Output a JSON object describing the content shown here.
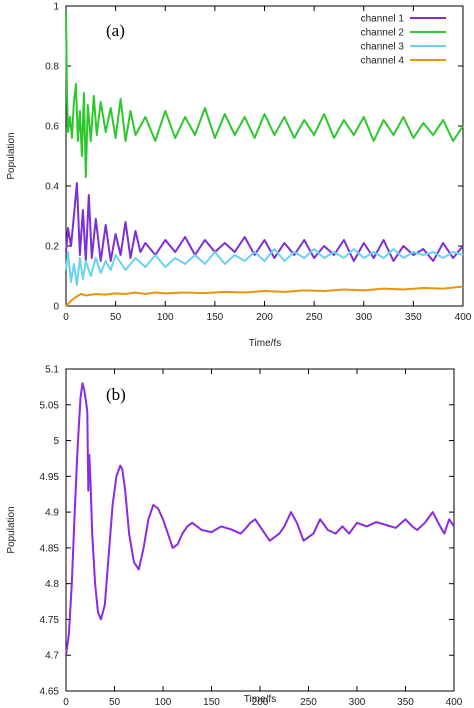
{
  "chart_data": [
    {
      "type": "line",
      "panel_label": "(a)",
      "xlabel": "Time/fs",
      "ylabel": "Population",
      "xlim": [
        0,
        400
      ],
      "ylim": [
        0,
        1
      ],
      "xticks": [
        "0",
        "50",
        "100",
        "150",
        "200",
        "250",
        "300",
        "350",
        "400"
      ],
      "yticks": [
        "0",
        "0.2",
        "0.4",
        "0.6",
        "0.8",
        "1"
      ],
      "legend_position": "top-right",
      "series": [
        {
          "name": "channel 1",
          "color": "#7b2fd4",
          "x": [
            0,
            2,
            5,
            8,
            11,
            14,
            17,
            20,
            23,
            26,
            30,
            35,
            40,
            45,
            50,
            55,
            60,
            65,
            70,
            75,
            80,
            90,
            100,
            110,
            120,
            130,
            140,
            150,
            160,
            170,
            180,
            190,
            200,
            210,
            220,
            230,
            240,
            250,
            260,
            270,
            280,
            290,
            300,
            310,
            320,
            330,
            340,
            350,
            360,
            370,
            380,
            390,
            400
          ],
          "y": [
            0.18,
            0.26,
            0.2,
            0.3,
            0.41,
            0.17,
            0.32,
            0.15,
            0.37,
            0.16,
            0.29,
            0.15,
            0.27,
            0.15,
            0.24,
            0.17,
            0.28,
            0.16,
            0.25,
            0.18,
            0.21,
            0.17,
            0.22,
            0.18,
            0.23,
            0.17,
            0.22,
            0.18,
            0.21,
            0.18,
            0.23,
            0.17,
            0.22,
            0.16,
            0.21,
            0.17,
            0.22,
            0.16,
            0.2,
            0.17,
            0.22,
            0.15,
            0.21,
            0.16,
            0.22,
            0.15,
            0.2,
            0.17,
            0.19,
            0.15,
            0.21,
            0.16,
            0.2
          ]
        },
        {
          "name": "channel 2",
          "color": "#2ec72e",
          "x": [
            0,
            1,
            2,
            4,
            6,
            8,
            10,
            12,
            14,
            16,
            18,
            20,
            22,
            25,
            28,
            31,
            35,
            40,
            45,
            50,
            55,
            60,
            65,
            70,
            80,
            90,
            100,
            110,
            120,
            130,
            140,
            150,
            160,
            170,
            180,
            190,
            200,
            210,
            220,
            230,
            240,
            250,
            260,
            270,
            280,
            290,
            300,
            310,
            320,
            330,
            340,
            350,
            360,
            370,
            380,
            390,
            400
          ],
          "y": [
            0.98,
            0.7,
            0.58,
            0.63,
            0.56,
            0.68,
            0.74,
            0.55,
            0.65,
            0.5,
            0.71,
            0.43,
            0.67,
            0.55,
            0.7,
            0.57,
            0.68,
            0.58,
            0.66,
            0.56,
            0.69,
            0.55,
            0.65,
            0.57,
            0.63,
            0.55,
            0.65,
            0.56,
            0.63,
            0.57,
            0.66,
            0.56,
            0.64,
            0.57,
            0.63,
            0.56,
            0.64,
            0.57,
            0.63,
            0.56,
            0.62,
            0.57,
            0.64,
            0.56,
            0.62,
            0.57,
            0.63,
            0.55,
            0.62,
            0.57,
            0.63,
            0.56,
            0.61,
            0.57,
            0.62,
            0.55,
            0.6
          ]
        },
        {
          "name": "channel 3",
          "color": "#6ad2f0",
          "x": [
            0,
            2,
            5,
            8,
            11,
            14,
            17,
            20,
            25,
            30,
            35,
            40,
            45,
            50,
            60,
            70,
            80,
            90,
            100,
            110,
            120,
            130,
            140,
            150,
            160,
            170,
            180,
            190,
            200,
            210,
            220,
            230,
            240,
            250,
            260,
            270,
            280,
            290,
            300,
            310,
            320,
            330,
            340,
            350,
            360,
            370,
            380,
            390,
            400
          ],
          "y": [
            0.12,
            0.18,
            0.08,
            0.14,
            0.07,
            0.16,
            0.09,
            0.15,
            0.1,
            0.16,
            0.11,
            0.15,
            0.12,
            0.17,
            0.12,
            0.16,
            0.13,
            0.17,
            0.13,
            0.16,
            0.14,
            0.17,
            0.14,
            0.18,
            0.14,
            0.17,
            0.15,
            0.18,
            0.15,
            0.19,
            0.15,
            0.18,
            0.16,
            0.19,
            0.16,
            0.18,
            0.16,
            0.19,
            0.16,
            0.18,
            0.16,
            0.19,
            0.16,
            0.18,
            0.17,
            0.18,
            0.16,
            0.18,
            0.17
          ]
        },
        {
          "name": "channel 4",
          "color": "#e8960f",
          "x": [
            0,
            3,
            6,
            10,
            15,
            20,
            30,
            40,
            50,
            60,
            70,
            80,
            90,
            100,
            120,
            140,
            160,
            180,
            200,
            220,
            240,
            260,
            280,
            300,
            320,
            340,
            360,
            380,
            400
          ],
          "y": [
            0.0,
            0.01,
            0.02,
            0.03,
            0.04,
            0.035,
            0.04,
            0.038,
            0.042,
            0.04,
            0.045,
            0.04,
            0.045,
            0.042,
            0.045,
            0.043,
            0.047,
            0.045,
            0.05,
            0.047,
            0.052,
            0.05,
            0.055,
            0.052,
            0.058,
            0.055,
            0.06,
            0.058,
            0.065
          ]
        }
      ]
    },
    {
      "type": "line",
      "panel_label": "(b)",
      "xlabel": "Time/fs",
      "ylabel": "Population",
      "xlim": [
        0,
        400
      ],
      "ylim": [
        4.65,
        5.1
      ],
      "xticks": [
        "0",
        "50",
        "100",
        "150",
        "200",
        "250",
        "300",
        "350",
        "400"
      ],
      "yticks": [
        "4.65",
        "4.7",
        "4.75",
        "4.8",
        "4.85",
        "4.9",
        "4.95",
        "5",
        "5.05",
        "5.1"
      ],
      "series": [
        {
          "name": "",
          "color": "#8a2be2",
          "x": [
            0,
            3,
            6,
            9,
            12,
            15,
            17,
            19,
            21,
            22,
            23,
            24,
            25,
            27,
            30,
            33,
            36,
            40,
            44,
            48,
            52,
            56,
            58,
            61,
            65,
            70,
            75,
            80,
            85,
            90,
            95,
            100,
            105,
            110,
            115,
            120,
            125,
            130,
            135,
            140,
            150,
            160,
            170,
            180,
            185,
            190,
            195,
            200,
            210,
            220,
            225,
            232,
            238,
            245,
            255,
            262,
            270,
            278,
            285,
            292,
            300,
            310,
            320,
            330,
            340,
            350,
            357,
            362,
            370,
            378,
            385,
            390,
            395,
            400
          ],
          "y": [
            4.7,
            4.73,
            4.8,
            4.9,
            4.99,
            5.06,
            5.08,
            5.07,
            5.05,
            5.04,
            4.93,
            4.98,
            4.95,
            4.87,
            4.8,
            4.76,
            4.75,
            4.77,
            4.84,
            4.91,
            4.95,
            4.965,
            4.96,
            4.93,
            4.87,
            4.83,
            4.82,
            4.85,
            4.89,
            4.91,
            4.905,
            4.89,
            4.87,
            4.85,
            4.855,
            4.87,
            4.88,
            4.885,
            4.88,
            4.875,
            4.872,
            4.88,
            4.876,
            4.87,
            4.877,
            4.885,
            4.89,
            4.88,
            4.86,
            4.87,
            4.88,
            4.9,
            4.885,
            4.86,
            4.87,
            4.89,
            4.875,
            4.87,
            4.88,
            4.87,
            4.885,
            4.88,
            4.886,
            4.882,
            4.878,
            4.89,
            4.88,
            4.875,
            4.885,
            4.9,
            4.882,
            4.87,
            4.89,
            4.88
          ]
        }
      ]
    }
  ]
}
